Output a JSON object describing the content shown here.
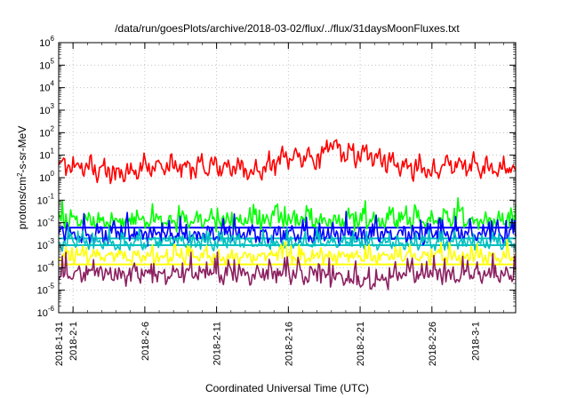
{
  "chart_data": {
    "type": "line",
    "title": "/data/run/goesPlots/archive/2018-03-02/flux/../flux/31daysMoonFluxes.txt",
    "xlabel": "Coordinated Universal Time (UTC)",
    "ylabel": "protons/cm2-s-sr-MeV",
    "ylabel_parts": {
      "pre": "protons/cm",
      "sup": "2",
      "post": "-s-sr-MeV"
    },
    "yscale": "log",
    "ylim_exponents": [
      -6,
      6
    ],
    "ytick_exponents": [
      6,
      5,
      4,
      3,
      2,
      1,
      0,
      -1,
      -2,
      -3,
      -4,
      -5,
      -6
    ],
    "ytick_base": "10",
    "xlim": [
      "2018-01-31",
      "2018-03-03T20:00"
    ],
    "xticks": [
      {
        "date": "2018-01-31",
        "label": "2018-1-31"
      },
      {
        "date": "2018-02-01",
        "label": "2018-2-1"
      },
      {
        "date": "2018-02-06",
        "label": "2018-2-6"
      },
      {
        "date": "2018-02-11",
        "label": "2018-2-11"
      },
      {
        "date": "2018-02-16",
        "label": "2018-2-16"
      },
      {
        "date": "2018-02-21",
        "label": "2018-2-21"
      },
      {
        "date": "2018-02-26",
        "label": "2018-2-26"
      },
      {
        "date": "2018-03-01",
        "label": "2018-3-1"
      }
    ],
    "grid": true,
    "series": [
      {
        "color": "#ff0000",
        "x": [
          "2018-01-31",
          "2018-02-02",
          "2018-02-04",
          "2018-02-06",
          "2018-02-08",
          "2018-02-10",
          "2018-02-12",
          "2018-02-14",
          "2018-02-16",
          "2018-02-18",
          "2018-02-19",
          "2018-02-20",
          "2018-02-22",
          "2018-02-24",
          "2018-02-26",
          "2018-02-28",
          "2018-03-01",
          "2018-03-03"
        ],
        "values": [
          3,
          3,
          1.5,
          3,
          3,
          3,
          3,
          2,
          10,
          6,
          30,
          10,
          10,
          3,
          2,
          4,
          3,
          3
        ]
      },
      {
        "color": "#00ff00",
        "x": [
          "2018-01-31",
          "2018-02-06",
          "2018-02-12",
          "2018-02-18",
          "2018-02-24",
          "2018-03-03"
        ],
        "values": [
          0.012,
          0.012,
          0.012,
          0.012,
          0.012,
          0.012
        ]
      },
      {
        "color": "#0000ff",
        "x": [
          "2018-01-31",
          "2018-02-06",
          "2018-02-12",
          "2018-02-18",
          "2018-02-24",
          "2018-03-03"
        ],
        "values": [
          0.003,
          0.003,
          0.003,
          0.003,
          0.003,
          0.003
        ]
      },
      {
        "color": "#00c0c0",
        "x": [
          "2018-01-31",
          "2018-02-06",
          "2018-02-12",
          "2018-02-18",
          "2018-02-24",
          "2018-03-03"
        ],
        "values": [
          0.0012,
          0.0012,
          0.0012,
          0.0012,
          0.0012,
          0.0012
        ]
      },
      {
        "color": "#ffff00",
        "x": [
          "2018-01-31",
          "2018-02-06",
          "2018-02-12",
          "2018-02-18",
          "2018-02-24",
          "2018-03-03"
        ],
        "values": [
          0.0003,
          0.0003,
          0.0003,
          0.0003,
          0.0003,
          0.0003
        ]
      },
      {
        "color": "#8b2060",
        "x": [
          "2018-01-31",
          "2018-02-06",
          "2018-02-12",
          "2018-02-18",
          "2018-02-22",
          "2018-02-24",
          "2018-03-03"
        ],
        "values": [
          5e-05,
          5e-05,
          5e-05,
          5e-05,
          2e-05,
          5e-05,
          5e-05
        ]
      }
    ],
    "reference_lines": [
      {
        "color": "#0000ff",
        "value": 0.006
      },
      {
        "color": "#00c0c0",
        "value": 0.002
      },
      {
        "color": "#00c0c0",
        "value": 0.001
      },
      {
        "color": "#ffff00",
        "value": 0.00014
      }
    ]
  }
}
